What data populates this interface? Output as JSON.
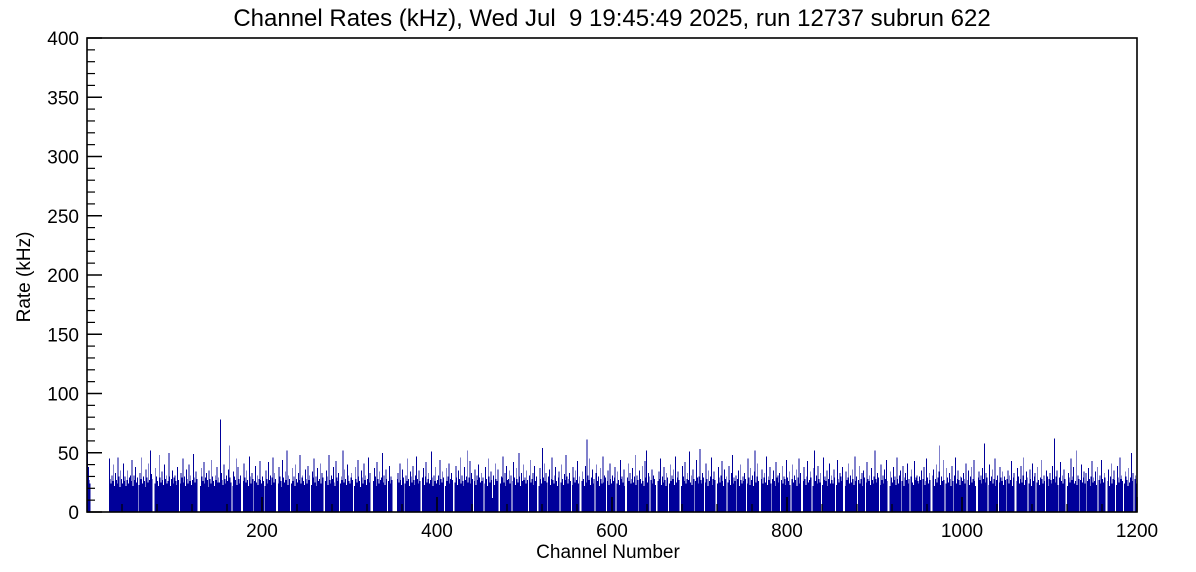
{
  "title": "Channel Rates (kHz), Wed Jul  9 19:45:49 2025, run 12737 subrun 622",
  "colors": {
    "bar": "#00009a",
    "axis": "#000000",
    "background": "#ffffff"
  },
  "chart_data": {
    "type": "bar",
    "title": "Channel Rates (kHz), Wed Jul  9 19:45:49 2025, run 12737 subrun 622",
    "xlabel": "Channel Number",
    "ylabel": "Rate (kHz)",
    "xlim": [
      0,
      1200
    ],
    "ylim": [
      0,
      400
    ],
    "x_major_ticks": [
      200,
      400,
      600,
      800,
      1000,
      1200
    ],
    "x_minor_step": 40,
    "y_major_ticks": [
      0,
      50,
      100,
      150,
      200,
      250,
      300,
      350,
      400
    ],
    "y_minor_step": 10,
    "grid": false,
    "legend": "none",
    "bar_color": "#00009a",
    "bin_width": 1,
    "x_start": 0,
    "notable_peaks": [
      {
        "channel": 152,
        "rate": 78
      },
      {
        "channel": 571,
        "rate": 61
      },
      {
        "channel": 974,
        "rate": 56
      },
      {
        "channel": 1025,
        "rate": 58
      },
      {
        "channel": 1105,
        "rate": 62
      }
    ],
    "values": [
      52,
      38,
      27,
      24,
      0,
      0,
      0,
      0,
      0,
      0,
      0,
      0,
      0,
      0,
      0,
      0,
      0,
      0,
      0,
      0,
      0,
      0,
      0,
      0,
      0,
      45,
      28,
      24,
      31,
      26,
      40,
      22,
      33,
      27,
      24,
      46,
      30,
      21,
      35,
      28,
      24,
      41,
      26,
      30,
      22,
      27,
      35,
      24,
      29,
      31,
      26,
      44,
      22,
      31,
      27,
      38,
      25,
      29,
      0,
      23,
      33,
      28,
      46,
      24,
      30,
      26,
      21,
      36,
      29,
      25,
      41,
      27,
      52,
      32,
      28,
      0,
      0,
      24,
      37,
      30,
      26,
      22,
      48,
      29,
      25,
      34,
      27,
      23,
      40,
      28,
      31,
      24,
      26,
      50,
      30,
      22,
      28,
      35,
      24,
      29,
      31,
      26,
      23,
      38,
      27,
      0,
      24,
      33,
      29,
      45,
      25,
      30,
      22,
      36,
      28,
      24,
      40,
      26,
      31,
      23,
      27,
      49,
      29,
      25,
      34,
      28,
      0,
      0,
      0,
      22,
      37,
      30,
      26,
      42,
      24,
      29,
      33,
      27,
      21,
      35,
      28,
      24,
      44,
      30,
      26,
      22,
      31,
      27,
      38,
      25,
      29,
      25,
      78,
      33,
      27,
      23,
      40,
      28,
      24,
      31,
      26,
      36,
      56,
      29,
      25,
      0,
      22,
      34,
      30,
      27,
      45,
      23,
      38,
      28,
      24,
      31,
      0,
      0,
      26,
      41,
      29,
      25,
      35,
      27,
      22,
      47,
      30,
      24,
      33,
      28,
      0,
      26,
      39,
      25,
      31,
      23,
      28,
      43,
      27,
      24,
      30,
      26,
      0,
      22,
      35,
      28,
      24,
      42,
      27,
      31,
      23,
      29,
      46,
      25,
      33,
      28,
      0,
      0,
      24,
      38,
      30,
      26,
      21,
      44,
      29,
      25,
      34,
      27,
      52,
      23,
      31,
      28,
      0,
      24,
      37,
      26,
      30,
      22,
      40,
      28,
      25,
      33,
      27,
      48,
      24,
      29,
      31,
      26,
      23,
      36,
      28,
      24,
      39,
      27,
      31,
      0,
      23,
      34,
      29,
      45,
      25,
      30,
      22,
      37,
      26,
      28,
      41,
      24,
      33,
      29,
      0,
      0,
      26,
      35,
      30,
      23,
      48,
      27,
      24,
      31,
      28,
      38,
      25,
      22,
      43,
      29,
      26,
      33,
      0,
      24,
      30,
      27,
      52,
      25,
      36,
      28,
      23,
      40,
      31,
      26,
      24,
      29,
      33,
      27,
      0,
      22,
      38,
      28,
      25,
      44,
      30,
      26,
      21,
      35,
      29,
      24,
      41,
      27,
      31,
      23,
      28,
      46,
      25,
      33,
      0,
      0,
      0,
      26,
      37,
      30,
      22,
      42,
      28,
      24,
      34,
      27,
      29,
      50,
      25,
      31,
      23,
      36,
      28,
      0,
      26,
      39,
      24,
      30,
      27,
      0,
      0,
      0,
      0,
      0,
      28,
      33,
      25,
      41,
      27,
      23,
      36,
      29,
      0,
      24,
      31,
      26,
      45,
      28,
      22,
      34,
      30,
      25,
      39,
      27,
      23,
      31,
      47,
      28,
      24,
      35,
      26,
      0,
      0,
      29,
      37,
      23,
      30,
      42,
      25,
      28,
      33,
      24,
      27,
      51,
      29,
      22,
      31,
      26,
      38,
      24,
      27,
      31,
      23,
      44,
      28,
      25,
      34,
      29,
      0,
      22,
      37,
      26,
      30,
      41,
      24,
      28,
      33,
      27,
      0,
      0,
      25,
      39,
      29,
      23,
      35,
      28,
      46,
      24,
      31,
      26,
      22,
      38,
      27,
      30,
      52,
      25,
      29,
      43,
      24,
      33,
      28,
      0,
      26,
      36,
      23,
      31,
      27,
      40,
      29,
      25,
      33,
      26,
      29,
      0,
      24,
      38,
      28,
      22,
      45,
      30,
      25,
      34,
      27,
      12,
      31,
      23,
      41,
      28,
      26,
      36,
      0,
      0,
      24,
      30,
      29,
      47,
      25,
      33,
      22,
      39,
      27,
      28,
      35,
      24,
      31,
      0,
      26,
      42,
      29,
      23,
      37,
      28,
      25,
      50,
      30,
      22,
      33,
      26,
      40,
      27,
      29,
      24,
      35,
      27,
      0,
      31,
      44,
      25,
      28,
      33,
      23,
      39,
      26,
      30,
      0,
      0,
      22,
      37,
      28,
      24,
      54,
      29,
      41,
      26,
      33,
      25,
      0,
      30,
      36,
      23,
      28,
      46,
      27,
      24,
      31,
      38,
      26,
      22,
      29,
      34,
      0,
      25,
      40,
      28,
      23,
      32,
      27,
      48,
      30,
      24,
      28,
      33,
      26,
      0,
      23,
      38,
      29,
      25,
      35,
      27,
      43,
      24,
      30,
      0,
      0,
      26,
      34,
      28,
      22,
      39,
      25,
      61,
      31,
      27,
      45,
      23,
      29,
      36,
      24,
      28,
      0,
      33,
      40,
      26,
      30,
      22,
      37,
      28,
      24,
      47,
      25,
      31,
      29,
      0,
      26,
      35,
      23,
      41,
      28,
      24,
      31,
      26,
      29,
      38,
      0,
      24,
      34,
      27,
      23,
      44,
      28,
      30,
      25,
      36,
      22,
      0,
      0,
      29,
      41,
      26,
      33,
      24,
      28,
      37,
      25,
      30,
      48,
      23,
      31,
      27,
      0,
      35,
      28,
      24,
      39,
      26,
      22,
      43,
      29,
      52,
      25,
      33,
      30,
      0,
      27,
      36,
      24,
      31,
      28,
      23,
      0,
      0,
      26,
      34,
      28,
      45,
      23,
      30,
      25,
      38,
      27,
      22,
      33,
      29,
      0,
      24,
      40,
      26,
      31,
      28,
      36,
      23,
      47,
      25,
      29,
      34,
      27,
      0,
      0,
      22,
      39,
      30,
      26,
      42,
      24,
      28,
      33,
      27,
      51,
      25,
      31,
      23,
      36,
      28,
      0,
      26,
      44,
      29,
      24,
      30,
      53,
      27,
      24,
      33,
      29,
      0,
      25,
      41,
      28,
      22,
      35,
      26,
      30,
      46,
      23,
      28,
      34,
      27,
      0,
      0,
      24,
      38,
      29,
      25,
      31,
      43,
      26,
      22,
      36,
      28,
      30,
      0,
      25,
      39,
      27,
      23,
      33,
      48,
      24,
      29,
      26,
      31,
      0,
      28,
      35,
      22,
      40,
      27,
      24,
      30,
      26,
      33,
      28,
      0,
      24,
      45,
      29,
      23,
      37,
      27,
      31,
      22,
      34,
      52,
      25,
      30,
      41,
      26,
      0,
      0,
      28,
      36,
      24,
      29,
      33,
      25,
      47,
      23,
      30,
      27,
      38,
      24,
      0,
      28,
      35,
      26,
      22,
      42,
      29,
      31,
      25,
      33,
      0,
      27,
      39,
      24,
      30,
      28,
      23,
      44,
      29,
      26,
      34,
      23,
      0,
      28,
      40,
      25,
      31,
      27,
      36,
      22,
      29,
      45,
      24,
      33,
      0,
      0,
      26,
      38,
      28,
      23,
      30,
      43,
      25,
      27,
      34,
      29,
      0,
      22,
      37,
      52,
      26,
      31,
      24,
      39,
      28,
      25,
      33,
      0,
      23,
      46,
      27,
      30,
      26,
      35,
      22,
      28,
      41,
      24,
      31,
      27,
      24,
      36,
      29,
      0,
      23,
      44,
      28,
      25,
      33,
      30,
      26,
      38,
      0,
      0,
      22,
      34,
      27,
      29,
      41,
      24,
      31,
      25,
      36,
      28,
      23,
      47,
      26,
      30,
      0,
      27,
      39,
      24,
      28,
      33,
      22,
      35,
      29,
      0,
      25,
      42,
      28,
      26,
      31,
      23,
      37,
      27,
      24,
      30,
      52,
      28,
      25,
      33,
      29,
      0,
      23,
      40,
      27,
      31,
      24,
      36,
      28,
      44,
      26,
      0,
      0,
      22,
      34,
      29,
      25,
      38,
      27,
      30,
      23,
      46,
      28,
      24,
      31,
      35,
      0,
      26,
      39,
      22,
      29,
      33,
      27,
      41,
      24,
      28,
      0,
      30,
      36,
      25,
      23,
      43,
      27,
      29,
      31,
      26,
      24,
      30,
      27,
      35,
      0,
      28,
      38,
      23,
      26,
      45,
      29,
      24,
      33,
      27,
      0,
      0,
      31,
      36,
      22,
      28,
      40,
      25,
      29,
      34,
      56,
      23,
      30,
      26,
      44,
      27,
      0,
      24,
      37,
      29,
      25,
      33,
      28,
      22,
      39,
      26,
      0,
      31,
      46,
      24,
      28,
      35,
      27,
      23,
      30,
      29,
      26,
      33,
      28,
      24,
      41,
      0,
      27,
      35,
      23,
      30,
      38,
      25,
      28,
      44,
      26,
      22,
      0,
      0,
      29,
      34,
      27,
      31,
      24,
      37,
      28,
      58,
      25,
      33,
      29,
      0,
      23,
      40,
      26,
      30,
      36,
      24,
      28,
      45,
      22,
      27,
      31,
      0,
      25,
      38,
      29,
      26,
      34,
      23,
      30,
      27,
      0,
      28,
      35,
      24,
      31,
      27,
      43,
      22,
      29,
      33,
      0,
      0,
      26,
      37,
      30,
      24,
      28,
      39,
      25,
      31,
      46,
      23,
      27,
      34,
      29,
      0,
      24,
      36,
      28,
      22,
      41,
      26,
      30,
      33,
      0,
      25,
      38,
      27,
      23,
      29,
      44,
      28,
      24,
      31,
      26,
      0,
      35,
      30,
      22,
      28,
      33,
      27,
      24,
      39,
      28,
      62,
      25,
      30,
      35,
      23,
      0,
      29,
      42,
      26,
      31,
      24,
      36,
      28,
      0,
      0,
      22,
      33,
      29,
      25,
      45,
      27,
      30,
      38,
      24,
      26,
      52,
      23,
      31,
      28,
      0,
      27,
      40,
      25,
      29,
      34,
      24,
      33,
      0,
      26,
      37,
      28,
      22,
      30,
      43,
      25,
      29,
      26,
      34,
      23,
      38,
      0,
      27,
      31,
      24,
      44,
      28,
      25,
      33,
      29,
      0,
      0,
      26,
      36,
      22,
      30,
      41,
      24,
      28,
      35,
      27,
      0,
      23,
      39,
      29,
      25,
      46,
      28,
      31,
      26,
      0,
      24,
      34,
      30,
      27,
      22,
      37,
      25,
      29,
      50,
      26,
      33,
      0,
      28,
      31,
      24
    ]
  }
}
